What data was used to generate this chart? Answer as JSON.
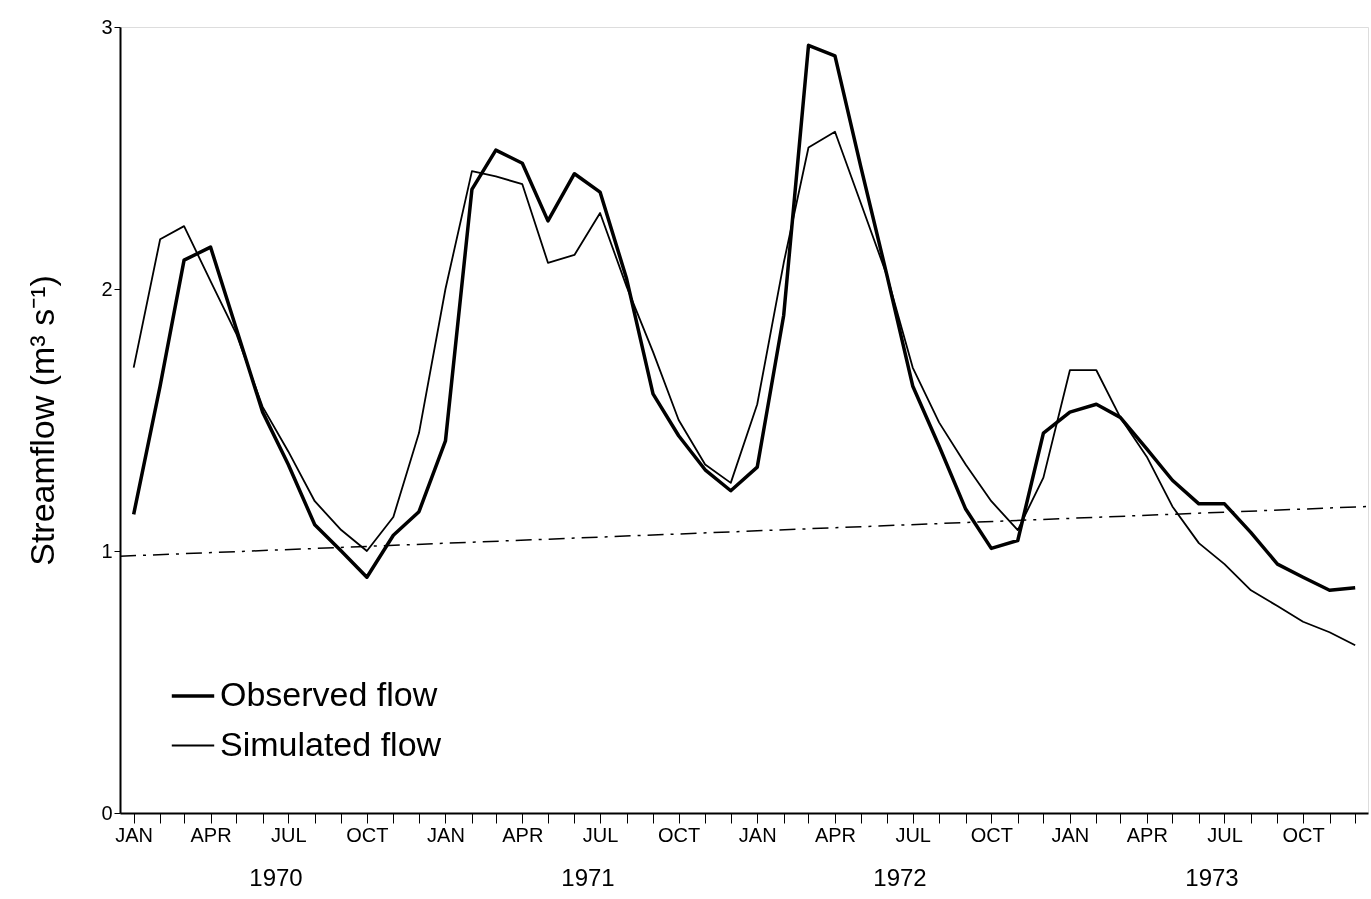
{
  "chart_data": {
    "type": "line",
    "ylabel": "Streamflow (m³ s⁻¹)",
    "x": [
      "1970-01",
      "1970-02",
      "1970-03",
      "1970-04",
      "1970-05",
      "1970-06",
      "1970-07",
      "1970-08",
      "1970-09",
      "1970-10",
      "1970-11",
      "1970-12",
      "1971-01",
      "1971-02",
      "1971-03",
      "1971-04",
      "1971-05",
      "1971-06",
      "1971-07",
      "1971-08",
      "1971-09",
      "1971-10",
      "1971-11",
      "1971-12",
      "1972-01",
      "1972-02",
      "1972-03",
      "1972-04",
      "1972-05",
      "1972-06",
      "1972-07",
      "1972-08",
      "1972-09",
      "1972-10",
      "1972-11",
      "1972-12",
      "1973-01",
      "1973-02",
      "1973-03",
      "1973-04",
      "1973-05",
      "1973-06",
      "1973-07",
      "1973-08",
      "1973-09",
      "1973-10",
      "1973-11",
      "1973-12"
    ],
    "series": [
      {
        "name": "Observed flow",
        "color": "#000000",
        "values": [
          1.14,
          1.63,
          2.11,
          2.16,
          1.85,
          1.53,
          1.33,
          1.1,
          1.0,
          0.9,
          1.06,
          1.15,
          1.42,
          2.38,
          2.53,
          2.48,
          2.26,
          2.44,
          2.37,
          2.04,
          1.6,
          1.44,
          1.31,
          1.23,
          1.32,
          1.9,
          2.93,
          2.89,
          2.47,
          2.05,
          1.63,
          1.4,
          1.16,
          1.01,
          1.04,
          1.45,
          1.53,
          1.56,
          1.51,
          1.39,
          1.27,
          1.18,
          1.18,
          1.07,
          0.95,
          0.9,
          0.85,
          0.86
        ]
      },
      {
        "name": "Simulated flow",
        "color": "#000000",
        "values": [
          1.7,
          2.19,
          2.24,
          2.03,
          1.83,
          1.55,
          1.38,
          1.19,
          1.08,
          1.0,
          1.13,
          1.45,
          2.0,
          2.45,
          2.43,
          2.4,
          2.1,
          2.13,
          2.29,
          2.01,
          1.76,
          1.5,
          1.33,
          1.26,
          1.56,
          2.1,
          2.54,
          2.6,
          2.33,
          2.05,
          1.7,
          1.49,
          1.33,
          1.19,
          1.08,
          1.28,
          1.69,
          1.69,
          1.51,
          1.36,
          1.17,
          1.03,
          0.95,
          0.85,
          0.79,
          0.73,
          0.69,
          0.64
        ]
      },
      {
        "type": "line",
        "color": "#000000",
        "line_style": "dashed",
        "x": [
          "1969-12-16",
          "1973-12-16"
        ],
        "values": [
          0.98,
          1.17
        ]
      }
    ],
    "xlim": [
      "1969-12-16",
      "1973-12-16"
    ],
    "xticks": [
      {
        "value": "1970-01",
        "label": "JAN"
      },
      {
        "value": "1970-02",
        "label": null
      },
      {
        "value": "1970-03",
        "label": null
      },
      {
        "value": "1970-04",
        "label": "APR"
      },
      {
        "value": "1970-05",
        "label": null
      },
      {
        "value": "1970-06",
        "label": null
      },
      {
        "value": "1970-07",
        "label": "JUL"
      },
      {
        "value": "1970-08",
        "label": null
      },
      {
        "value": "1970-09",
        "label": null
      },
      {
        "value": "1970-10",
        "label": "OCT"
      },
      {
        "value": "1970-11",
        "label": null
      },
      {
        "value": "1970-12",
        "label": null
      },
      {
        "value": "1971-01",
        "label": "JAN"
      },
      {
        "value": "1971-02",
        "label": null
      },
      {
        "value": "1971-03",
        "label": null
      },
      {
        "value": "1971-04",
        "label": "APR"
      },
      {
        "value": "1971-05",
        "label": null
      },
      {
        "value": "1971-06",
        "label": null
      },
      {
        "value": "1971-07",
        "label": "JUL"
      },
      {
        "value": "1971-08",
        "label": null
      },
      {
        "value": "1971-09",
        "label": null
      },
      {
        "value": "1971-10",
        "label": "OCT"
      },
      {
        "value": "1971-11",
        "label": null
      },
      {
        "value": "1971-12",
        "label": null
      },
      {
        "value": "1972-01",
        "label": "JAN"
      },
      {
        "value": "1972-02",
        "label": null
      },
      {
        "value": "1972-03",
        "label": null
      },
      {
        "value": "1972-04",
        "label": "APR"
      },
      {
        "value": "1972-05",
        "label": null
      },
      {
        "value": "1972-06",
        "label": null
      },
      {
        "value": "1972-07",
        "label": "JUL"
      },
      {
        "value": "1972-08",
        "label": null
      },
      {
        "value": "1972-09",
        "label": null
      },
      {
        "value": "1972-10",
        "label": "OCT"
      },
      {
        "value": "1972-11",
        "label": null
      },
      {
        "value": "1972-12",
        "label": null
      },
      {
        "value": "1973-01",
        "label": "JAN"
      },
      {
        "value": "1973-02",
        "label": null
      },
      {
        "value": "1973-03",
        "label": null
      },
      {
        "value": "1973-04",
        "label": "APR"
      },
      {
        "value": "1973-05",
        "label": null
      },
      {
        "value": "1973-06",
        "label": null
      },
      {
        "value": "1973-07",
        "label": "JUL"
      },
      {
        "value": "1973-08",
        "label": null
      },
      {
        "value": "1973-09",
        "label": null
      },
      {
        "value": "1973-10",
        "label": "OCT"
      },
      {
        "value": "1973-11",
        "label": null
      },
      {
        "value": "1973-12",
        "label": null
      }
    ],
    "ylim": [
      0,
      3
    ],
    "yticks": [
      0,
      1,
      2,
      3
    ],
    "annotations": [
      "1970",
      "1971",
      "1972",
      "1973"
    ],
    "grid": false,
    "legend": "bottom left"
  }
}
